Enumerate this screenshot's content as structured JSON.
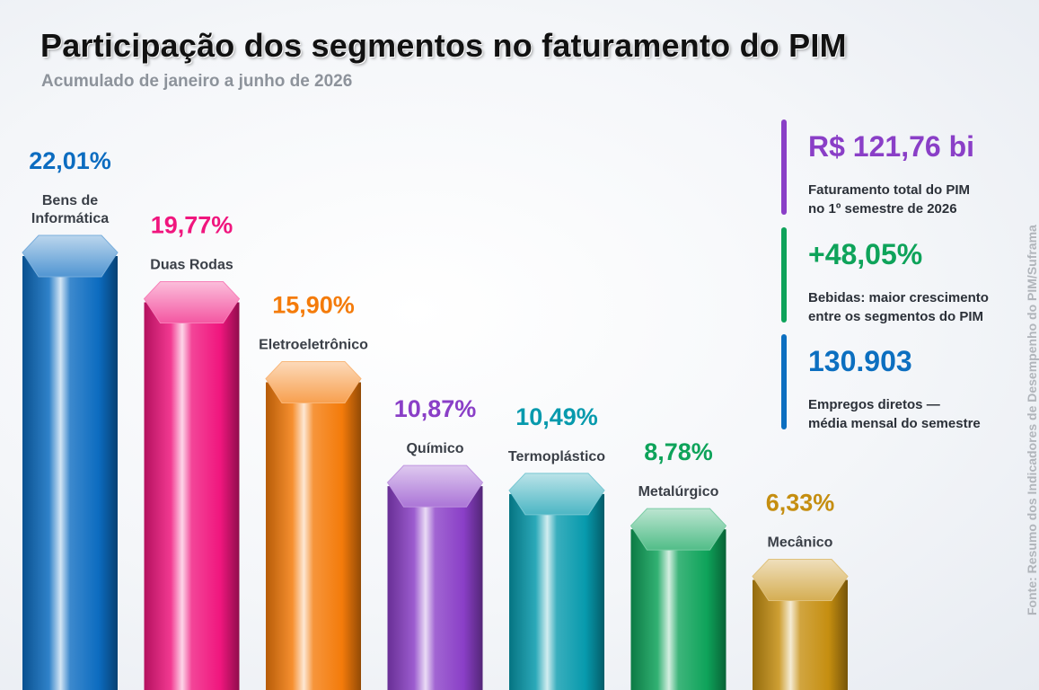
{
  "title": "Participação dos segmentos no faturamento do PIM",
  "subtitle": "Acumulado de janeiro a junho de 2026",
  "chart_data": {
    "type": "bar",
    "categories": [
      "Bens de Informática",
      "Duas Rodas",
      "Eletroeletrônico",
      "Químico",
      "Termoplástico",
      "Metalúrgico",
      "Mecânico"
    ],
    "label_lines": [
      [
        "Bens de",
        "Informática"
      ],
      [
        "Duas Rodas"
      ],
      [
        "Eletroeletrônico"
      ],
      [
        "Químico"
      ],
      [
        "Termoplástico"
      ],
      [
        "Metalúrgico"
      ],
      [
        "Mecânico"
      ]
    ],
    "values": [
      22.01,
      19.77,
      15.9,
      10.87,
      10.49,
      8.78,
      6.33
    ],
    "value_labels": [
      "22,01%",
      "19,77%",
      "15,90%",
      "10,87%",
      "10,49%",
      "8,78%",
      "6,33%"
    ],
    "colors": [
      "#0c6cc0",
      "#f0167e",
      "#f47b0a",
      "#8a3fc7",
      "#079aad",
      "#0ea35a",
      "#c58e10"
    ],
    "unit": "%"
  },
  "kpis": [
    {
      "value": "R$ 121,76 bi",
      "line1": "Faturamento total do PIM",
      "line2": "no 1º semestre de 2026"
    },
    {
      "value": "+48,05%",
      "line1": "Bebidas: maior crescimento",
      "line2": "entre os segmentos do PIM"
    },
    {
      "value": "130.903",
      "line1": "Empregos diretos —",
      "line2": "média mensal do semestre"
    }
  ],
  "source": "Fonte: Resumo dos Indicadores de Desempenho do PIM/Suframa"
}
